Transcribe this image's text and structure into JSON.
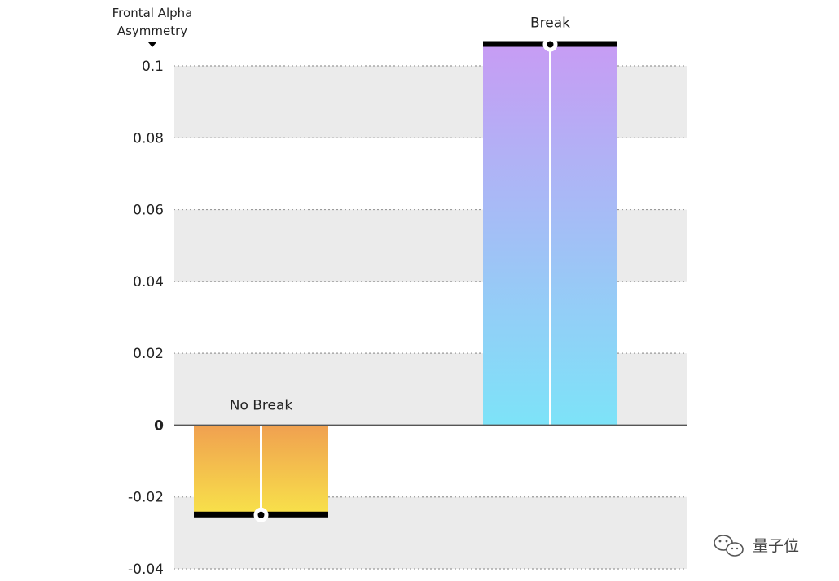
{
  "chart_data": {
    "type": "bar",
    "ylabel": "Frontal Alpha Asymmetry",
    "ylabel_lines": [
      "Frontal Alpha",
      "Asymmetry"
    ],
    "categories": [
      "No Break",
      "Break"
    ],
    "values": [
      -0.025,
      0.106
    ],
    "ylim": [
      -0.04,
      0.1
    ],
    "yticks": [
      -0.04,
      -0.02,
      0,
      0.02,
      0.04,
      0.06,
      0.08,
      0.1
    ],
    "ytick_labels": [
      "-0.04",
      "-0.02",
      "0",
      "0.02",
      "0.04",
      "0.06",
      "0.08",
      "0.1"
    ],
    "grid": true,
    "colors": {
      "No Break": {
        "top": "#F0A050",
        "bottom": "#F8E24A"
      },
      "Break": {
        "top": "#C79CF4",
        "bottom": "#7DE3F8"
      }
    },
    "band_color": "#EBEBEB"
  },
  "watermark": {
    "text": "量子位",
    "icon": "wechat-icon"
  }
}
